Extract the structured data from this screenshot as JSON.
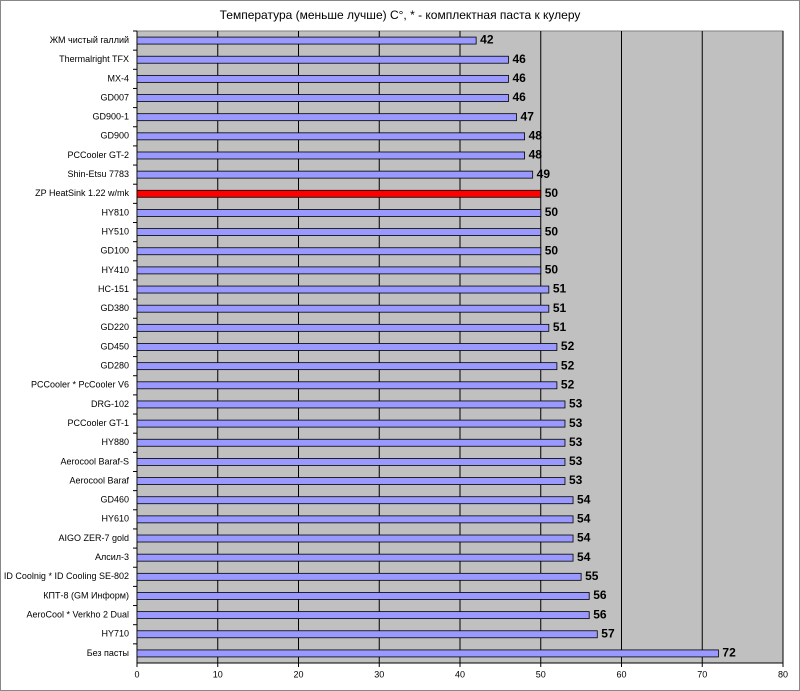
{
  "chart_data": {
    "type": "hbar",
    "title": "Температура (меньше лучше) С°, * - комплектная паста к кулеру",
    "categories": [
      "ЖМ чистый галлий",
      "Thermalright TFX",
      "MX-4",
      "GD007",
      "GD900-1",
      "GD900",
      "PCCooler GT-2",
      "Shin-Etsu 7783",
      "ZP HeatSink 1.22 w/mk",
      "HY810",
      "HY510",
      "GD100",
      "HY410",
      "HC-151",
      "GD380",
      "GD220",
      "GD450",
      "GD280",
      "PCCooler * PcCooler V6",
      "DRG-102",
      "PCCooler GT-1",
      "HY880",
      "Aerocool Baraf-S",
      "Aerocool Baraf",
      "GD460",
      "HY610",
      "AIGO ZER-7 gold",
      "Алсил-3",
      "ID Coolnig * ID Cooling SE-802",
      "КПТ-8 (GM Информ)",
      "AeroCool * Verkho 2 Dual",
      "HY710",
      "Без пасты"
    ],
    "values": [
      42,
      46,
      46,
      46,
      47,
      48,
      48,
      49,
      50,
      50,
      50,
      50,
      50,
      51,
      51,
      51,
      52,
      52,
      52,
      53,
      53,
      53,
      53,
      53,
      54,
      54,
      54,
      54,
      55,
      56,
      56,
      57,
      72
    ],
    "colors": [
      "#9999ff",
      "#9999ff",
      "#9999ff",
      "#9999ff",
      "#9999ff",
      "#9999ff",
      "#9999ff",
      "#9999ff",
      "#ff0000",
      "#9999ff",
      "#9999ff",
      "#9999ff",
      "#9999ff",
      "#9999ff",
      "#9999ff",
      "#9999ff",
      "#9999ff",
      "#9999ff",
      "#9999ff",
      "#9999ff",
      "#9999ff",
      "#9999ff",
      "#9999ff",
      "#9999ff",
      "#9999ff",
      "#9999ff",
      "#9999ff",
      "#9999ff",
      "#9999ff",
      "#9999ff",
      "#9999ff",
      "#9999ff",
      "#9999ff"
    ],
    "xlim": [
      0,
      80
    ],
    "xticks": [
      0,
      10,
      20,
      30,
      40,
      50,
      60,
      70,
      80
    ],
    "grid": true
  }
}
